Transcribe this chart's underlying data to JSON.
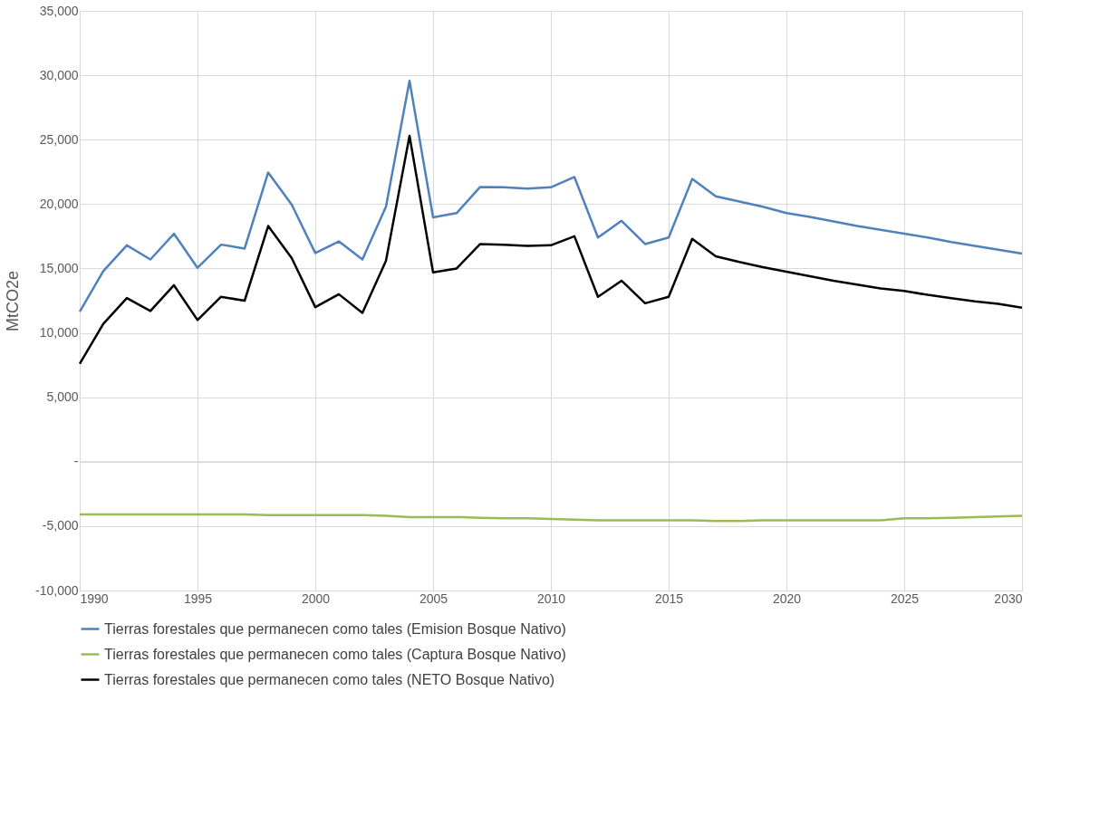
{
  "chart_data": {
    "type": "line",
    "ylabel": "MtCO2e",
    "x": [
      1990,
      1991,
      1992,
      1993,
      1994,
      1995,
      1996,
      1997,
      1998,
      1999,
      2000,
      2001,
      2002,
      2003,
      2004,
      2005,
      2006,
      2007,
      2008,
      2009,
      2010,
      2011,
      2012,
      2013,
      2014,
      2015,
      2016,
      2017,
      2018,
      2019,
      2020,
      2021,
      2022,
      2023,
      2024,
      2025,
      2026,
      2027,
      2028,
      2029,
      2030
    ],
    "series": [
      {
        "name": "Tierras forestales que permanecen como tales (Emision Bosque Nativo)",
        "color": "#4f81bd",
        "values": [
          11650,
          14800,
          16800,
          15700,
          17700,
          15050,
          16850,
          16550,
          22450,
          19950,
          16200,
          17100,
          15700,
          19800,
          29570,
          18970,
          19300,
          21330,
          21300,
          21200,
          21300,
          22100,
          17400,
          18700,
          16900,
          17400,
          21950,
          20600,
          20200,
          19800,
          19300,
          19000,
          18650,
          18300,
          18000,
          17700,
          17400,
          17050,
          16750,
          16450,
          16150
        ]
      },
      {
        "name": "Tierras forestales que permanecen como tales (Captura Bosque Nativo)",
        "color": "#9bbb59",
        "values": [
          -4100,
          -4100,
          -4100,
          -4100,
          -4100,
          -4100,
          -4100,
          -4100,
          -4150,
          -4150,
          -4150,
          -4150,
          -4150,
          -4200,
          -4300,
          -4300,
          -4300,
          -4350,
          -4400,
          -4400,
          -4450,
          -4500,
          -4550,
          -4550,
          -4550,
          -4550,
          -4550,
          -4600,
          -4600,
          -4550,
          -4550,
          -4550,
          -4550,
          -4550,
          -4550,
          -4400,
          -4400,
          -4350,
          -4300,
          -4250,
          -4200
        ]
      },
      {
        "name": "Tierras forestales que permanecen como tales (NETO Bosque Nativo)",
        "color": "#000000",
        "values": [
          7600,
          10700,
          12700,
          11700,
          13700,
          11000,
          12800,
          12500,
          18300,
          15800,
          12000,
          13000,
          11550,
          15600,
          25300,
          14700,
          15000,
          16900,
          16850,
          16750,
          16800,
          17500,
          12800,
          14050,
          12300,
          12800,
          17300,
          15950,
          15500,
          15100,
          14750,
          14400,
          14050,
          13750,
          13450,
          13250,
          12950,
          12700,
          12450,
          12250,
          11950
        ]
      }
    ],
    "xlim": [
      1990,
      2030
    ],
    "xticks": [
      1990,
      1995,
      2000,
      2005,
      2010,
      2015,
      2020,
      2025,
      2030
    ],
    "ylim": [
      -10000,
      35000
    ],
    "yticks": [
      {
        "value": -10000,
        "label": "-10,000"
      },
      {
        "value": -5000,
        "label": "-5,000"
      },
      {
        "value": 0,
        "label": "-"
      },
      {
        "value": 5000,
        "label": "5,000"
      },
      {
        "value": 10000,
        "label": "10,000"
      },
      {
        "value": 15000,
        "label": "15,000"
      },
      {
        "value": 20000,
        "label": "20,000"
      },
      {
        "value": 25000,
        "label": "25,000"
      },
      {
        "value": 30000,
        "label": "30,000"
      },
      {
        "value": 35000,
        "label": "35,000"
      }
    ],
    "grid": true,
    "legend": "bottom",
    "line_style": "solid",
    "marker": "none"
  }
}
